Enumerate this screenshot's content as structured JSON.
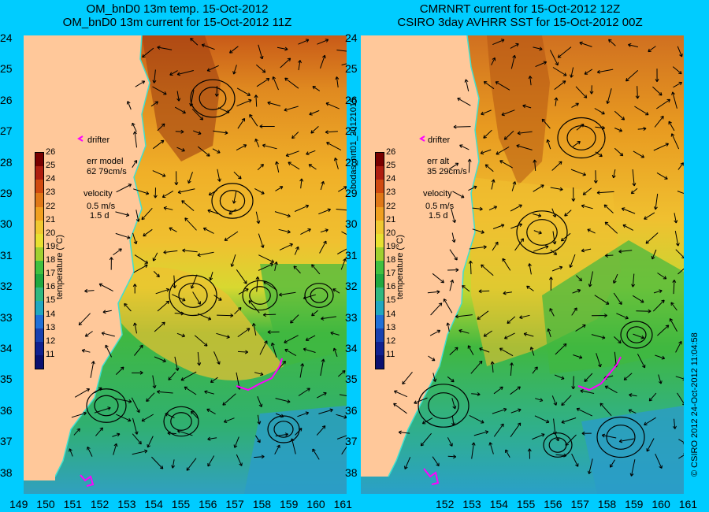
{
  "left_panel": {
    "title_line1": "OM_bnD0 13m temp. 15-Oct-2012",
    "title_line2": "OM_bnD0 13m current for 15-Oct-2012 11Z",
    "drifter_label": "drifter",
    "err_label": "err model",
    "err_value": "62 79cm/s",
    "velocity_label": "velocity",
    "velocity_scale": "0.5 m/s",
    "velocity_days": "1.5 d",
    "colorbar_title": "temperature (°C)"
  },
  "right_panel": {
    "title_line1": "CMRNRT current for 15-Oct-2012 12Z",
    "title_line2": "CSIRO 3day AVHRR SST for 15-Oct-2012 00Z",
    "drifter_label": "drifter",
    "err_label": "err alt",
    "err_value": "35 29cm/s",
    "velocity_label": "velocity",
    "velocity_scale": "0.5 m/s",
    "velocity_days": "1.5 d",
    "colorbar_title": "temperature (°C)"
  },
  "center_side_label": "bodas_nrt01_20121015",
  "right_side_label": "© CSIRO 2012   24-Oct-2012 11:04:58",
  "colorbar": {
    "ticks": [
      "26",
      "25",
      "24",
      "23",
      "22",
      "21",
      "20",
      "19",
      "18",
      "17",
      "16",
      "15",
      "14",
      "13",
      "12",
      "11"
    ],
    "colors": [
      "#7a0000",
      "#b01e10",
      "#d04a10",
      "#e07818",
      "#f0a020",
      "#f0c830",
      "#e8e030",
      "#a0d030",
      "#40c040",
      "#20a840",
      "#30b880",
      "#20a8c0",
      "#2070d8",
      "#1840b0",
      "#102090",
      "#0a1070"
    ]
  },
  "axes": {
    "y_labels": [
      "24",
      "25",
      "26",
      "27",
      "28",
      "29",
      "30",
      "31",
      "32",
      "33",
      "34",
      "35",
      "36",
      "37",
      "38"
    ],
    "x_labels_left": [
      "149",
      "150",
      "151",
      "152",
      "153",
      "154",
      "155",
      "156",
      "157",
      "158",
      "159",
      "160",
      "161"
    ],
    "x_labels_right": [
      "152",
      "153",
      "154",
      "155",
      "156",
      "157",
      "158",
      "159",
      "160",
      "161"
    ]
  },
  "colors": {
    "background": "#00ccff",
    "land": "#ffc89a",
    "drifter": "#ff00ff",
    "coast_line": "#40e0d0"
  }
}
